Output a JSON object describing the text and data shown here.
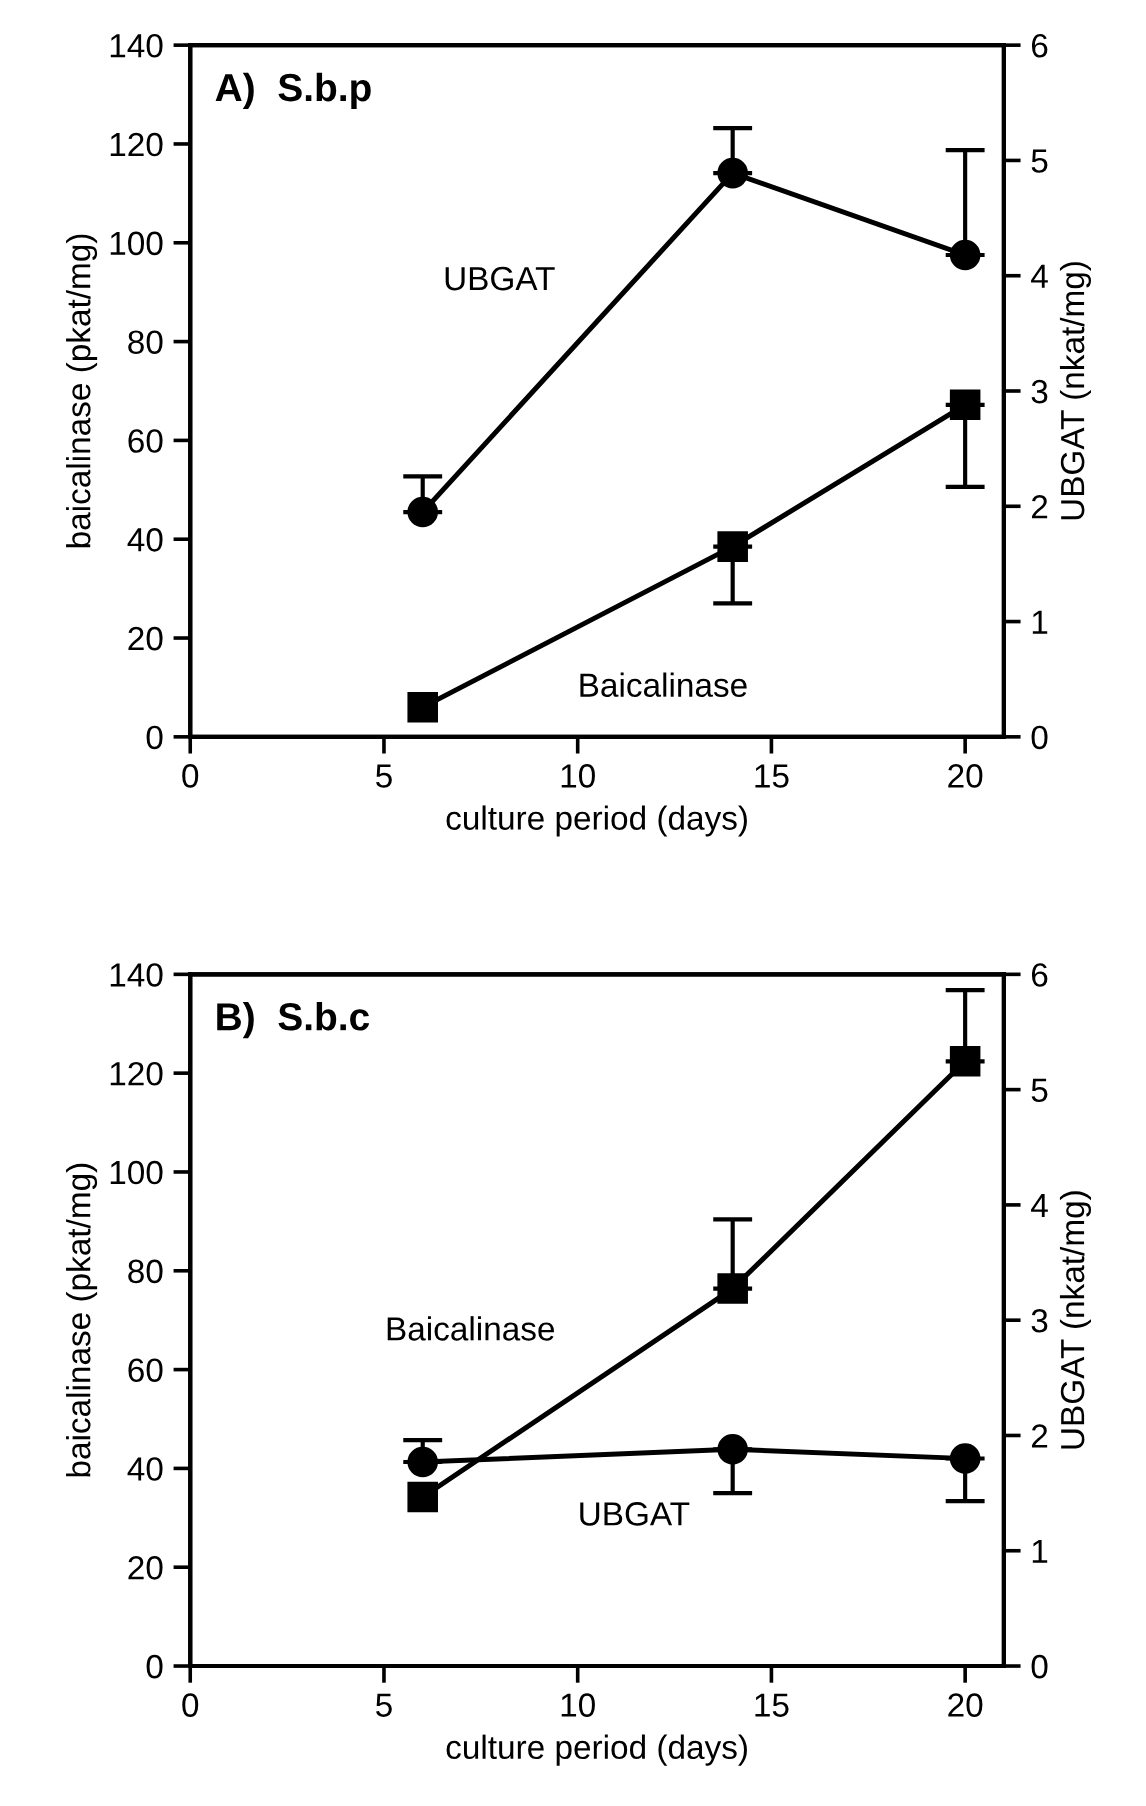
{
  "chart_data": [
    {
      "type": "line",
      "title": "A)  S.b.p",
      "xlabel": "culture period (days)",
      "ylabel": "baicalinase (pkat/mg)",
      "y2label": "UBGAT (nkat/mg)",
      "x": [
        6,
        14,
        20
      ],
      "xlim": [
        0,
        21
      ],
      "xticks": [
        0,
        5,
        10,
        15,
        20
      ],
      "ylim": [
        0,
        140
      ],
      "yticks": [
        0,
        20,
        40,
        60,
        80,
        100,
        120,
        140
      ],
      "y2lim": [
        0,
        6
      ],
      "y2ticks": [
        0,
        1,
        2,
        3,
        4,
        5,
        6
      ],
      "grid": false,
      "legend": false,
      "series": [
        {
          "name": "UBGAT",
          "color": "#000000",
          "axis": "y2",
          "marker": "circle",
          "values": [
            1.95,
            4.89,
            4.18
          ],
          "errors": [
            [
              1.95,
              2.26
            ],
            [
              4.89,
              5.28
            ],
            [
              4.18,
              5.09
            ]
          ]
        },
        {
          "name": "Baicalinase",
          "color": "#000000",
          "marker": "square",
          "values": [
            6,
            38.5,
            67.2
          ],
          "errors": [
            null,
            [
              27,
              38.5
            ],
            [
              50.6,
              67.2
            ]
          ]
        }
      ]
    },
    {
      "type": "line",
      "title": "B)  S.b.c",
      "xlabel": "culture period (days)",
      "ylabel": "baicalinase (pkat/mg)",
      "y2label": "UBGAT (nkat/mg)",
      "x": [
        6,
        14,
        20
      ],
      "xlim": [
        0,
        21
      ],
      "xticks": [
        0,
        5,
        10,
        15,
        20
      ],
      "ylim": [
        0,
        140
      ],
      "yticks": [
        0,
        20,
        40,
        60,
        80,
        100,
        120,
        140
      ],
      "y2lim": [
        0,
        6
      ],
      "y2ticks": [
        0,
        1,
        2,
        3,
        4,
        5,
        6
      ],
      "grid": false,
      "legend": false,
      "series": [
        {
          "name": "Baicalinase",
          "color": "#000000",
          "marker": "square",
          "values": [
            34.2,
            76.4,
            122.4
          ],
          "errors": [
            null,
            [
              76.4,
              90.4
            ],
            [
              122.4,
              136.8
            ]
          ]
        },
        {
          "name": "UBGAT",
          "color": "#000000",
          "axis": "y2",
          "marker": "circle",
          "values": [
            1.77,
            1.88,
            1.8
          ],
          "errors": [
            [
              1.77,
              1.96
            ],
            [
              1.5,
              1.88
            ],
            [
              1.43,
              1.8
            ]
          ]
        }
      ]
    }
  ]
}
